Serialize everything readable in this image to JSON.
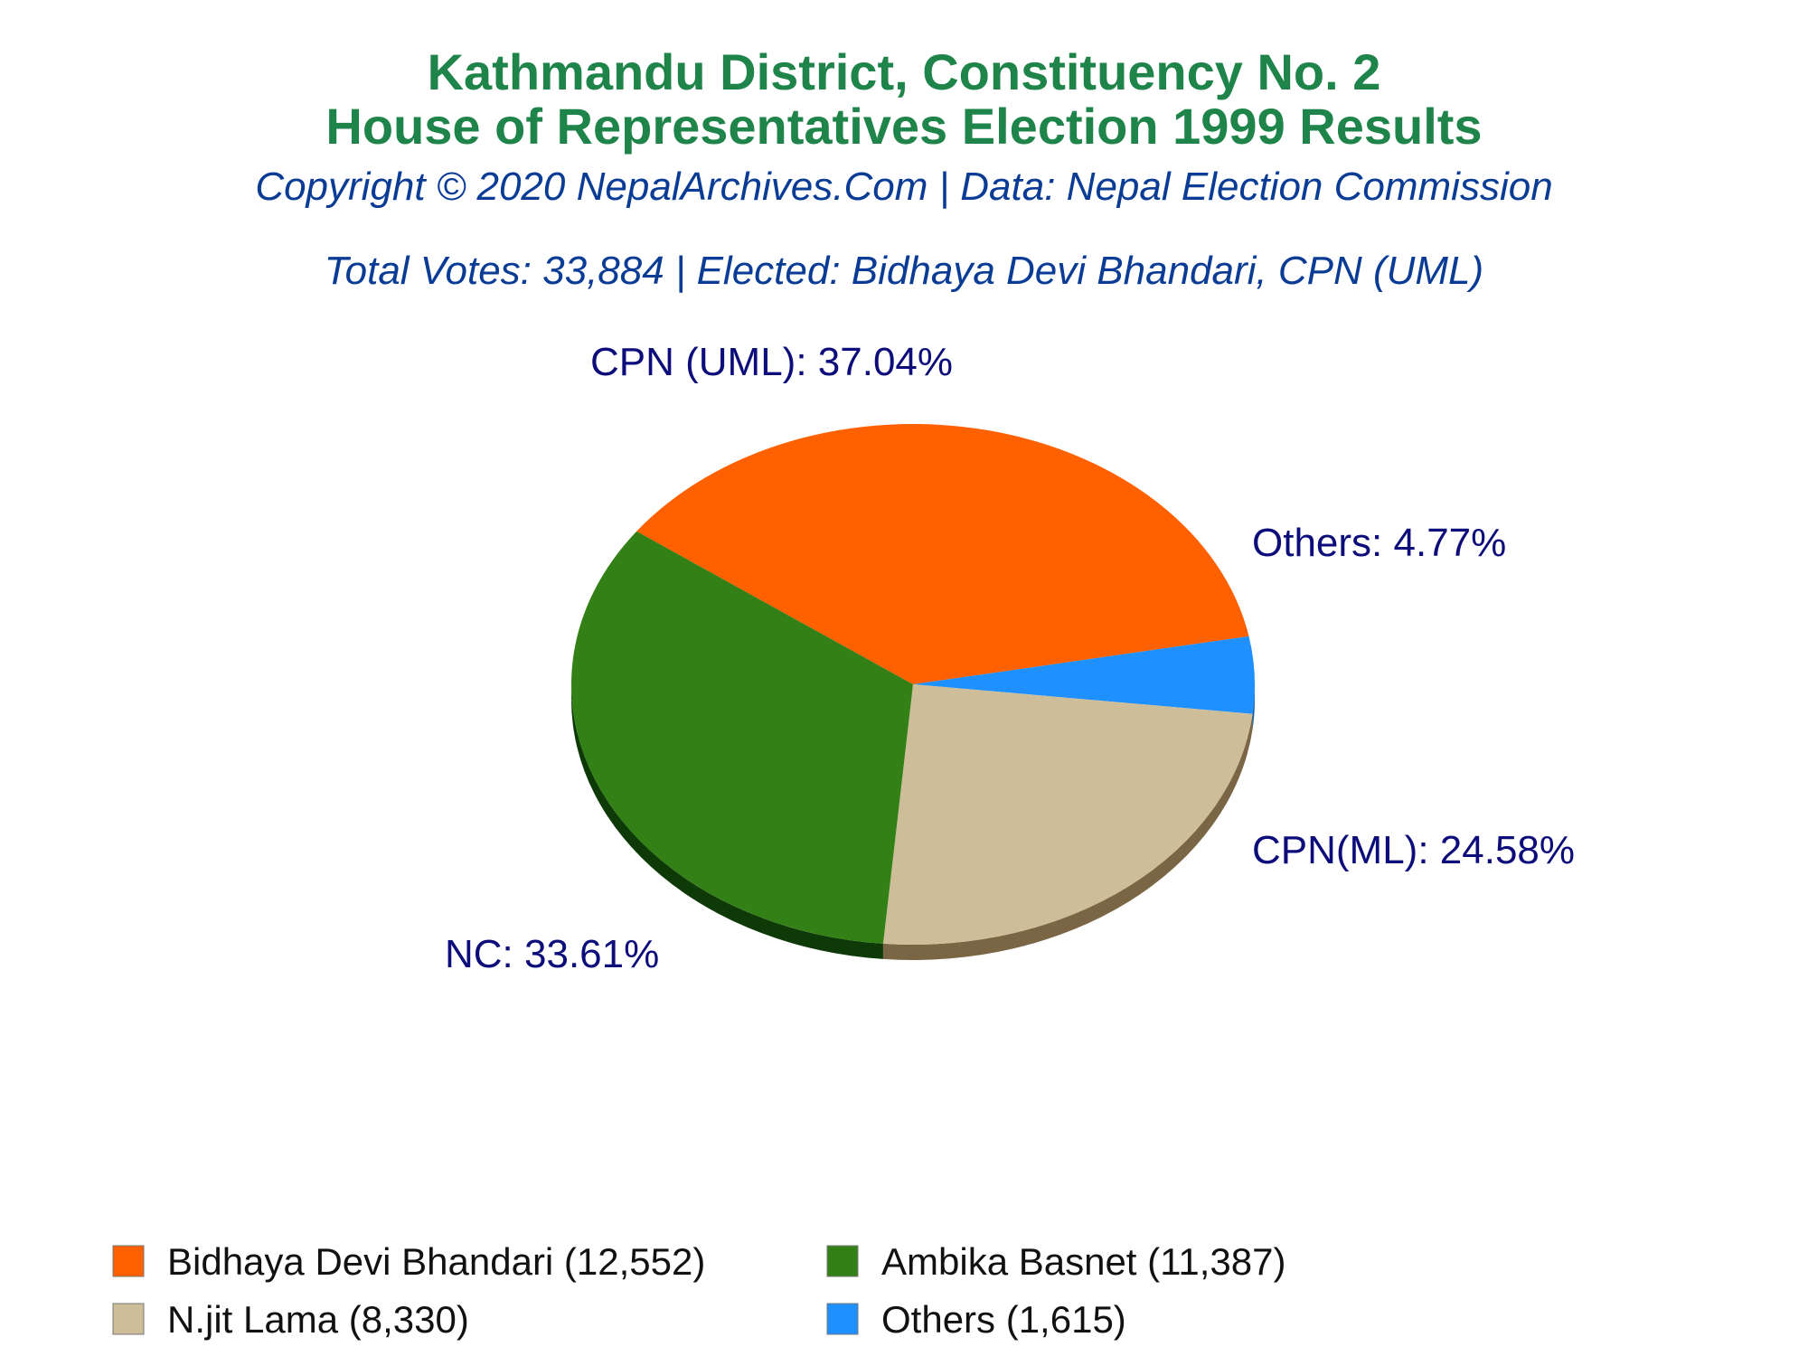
{
  "chart_data": {
    "type": "pie",
    "title": "Kathmandu District, Constituency No. 2",
    "subtitle": "House of Representatives Election 1999 Results",
    "credit": "Copyright © 2020 NepalArchives.Com | Data: Nepal Election Commission",
    "summary": "Total Votes: 33,884 | Elected: Bidhaya Devi Bhandari, CPN (UML)",
    "legend_position": "bottom",
    "slices": [
      {
        "label": "CPN (UML): 37.04%",
        "legend": "Bidhaya Devi Bhandari (12,552)",
        "value": 12552,
        "percent": 37.04,
        "color": "#ff6100",
        "side_color": "#a84000"
      },
      {
        "label": "Others: 4.77%",
        "legend": "Others (1,615)",
        "value": 1615,
        "percent": 4.77,
        "color": "#1e90ff",
        "side_color": "#0e5aa8"
      },
      {
        "label": "CPN(ML): 24.58%",
        "legend": "N.jit Lama (8,330)",
        "value": 8330,
        "percent": 24.58,
        "color": "#cdbd98",
        "side_color": "#7a6644"
      },
      {
        "label": "NC: 33.61%",
        "legend": "Ambika Basnet (11,387)",
        "value": 11387,
        "percent": 33.61,
        "color": "#338017",
        "side_color": "#0e3a08"
      }
    ]
  }
}
